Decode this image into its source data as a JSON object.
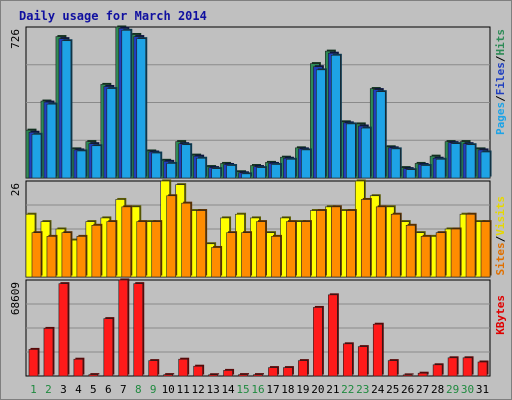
{
  "chart_data": {
    "type": "bar",
    "title": "Daily usage for March 2014",
    "categories": [
      "1",
      "2",
      "3",
      "4",
      "5",
      "6",
      "7",
      "8",
      "9",
      "10",
      "11",
      "12",
      "13",
      "14",
      "15",
      "16",
      "17",
      "18",
      "19",
      "20",
      "21",
      "22",
      "23",
      "24",
      "25",
      "26",
      "27",
      "28",
      "29",
      "30",
      "31"
    ],
    "weekend_days": [
      "1",
      "2",
      "8",
      "9",
      "15",
      "16",
      "22",
      "23",
      "29",
      "30"
    ],
    "panels": [
      {
        "name": "pages-files-hits",
        "max_label": "726",
        "ylim": [
          0,
          726
        ],
        "grid": true,
        "legend": [
          {
            "text": "Pages",
            "color": "#1ea3e6"
          },
          {
            "text": "/",
            "color": "#000000"
          },
          {
            "text": "Files",
            "color": "#1f3fbf"
          },
          {
            "text": "/",
            "color": "#000000"
          },
          {
            "text": "Hits",
            "color": "#2e8b57"
          }
        ],
        "series": [
          {
            "name": "Hits",
            "color": "#2e8b57",
            "values": [
              230,
              370,
              680,
              140,
              175,
              450,
              730,
              690,
              130,
              85,
              175,
              110,
              55,
              70,
              30,
              60,
              75,
              100,
              145,
              550,
              610,
              270,
              260,
              430,
              150,
              50,
              70,
              105,
              175,
              175,
              140
            ]
          },
          {
            "name": "Files",
            "color": "#1f3fbf",
            "values": [
              220,
              365,
              670,
              135,
              165,
              440,
              720,
              680,
              125,
              80,
              165,
              105,
              50,
              65,
              25,
              55,
              70,
              95,
              140,
              535,
              600,
              265,
              250,
              425,
              145,
              45,
              65,
              95,
              170,
              165,
              135
            ]
          },
          {
            "name": "Pages",
            "color": "#1ea3e6",
            "values": [
              210,
              355,
              660,
              130,
              155,
              430,
              710,
              670,
              120,
              70,
              160,
              95,
              45,
              60,
              20,
              50,
              65,
              90,
              135,
              520,
              590,
              260,
              240,
              415,
              140,
              40,
              60,
              90,
              165,
              160,
              125
            ]
          }
        ]
      },
      {
        "name": "visits-sites",
        "max_label": "26",
        "ylim": [
          0,
          26
        ],
        "grid": true,
        "legend": [
          {
            "text": "Sites",
            "color": "#e07000"
          },
          {
            "text": "/",
            "color": "#000000"
          },
          {
            "text": "Visits",
            "color": "#e6d800"
          }
        ],
        "series": [
          {
            "name": "Visits",
            "color": "#ffff00",
            "values": [
              17,
              15,
              13,
              10,
              15,
              16,
              21,
              19,
              15,
              26,
              25,
              18,
              9,
              16,
              17,
              16,
              12,
              16,
              15,
              18,
              19,
              18,
              26,
              22,
              19,
              15,
              12,
              11,
              13,
              17,
              15
            ]
          },
          {
            "name": "Sites",
            "color": "#ff8c00",
            "values": [
              12,
              11,
              12,
              11,
              14,
              15,
              19,
              15,
              15,
              22,
              20,
              18,
              8,
              12,
              12,
              15,
              11,
              15,
              15,
              18,
              19,
              18,
              21,
              19,
              17,
              14,
              11,
              12,
              13,
              17,
              15
            ]
          }
        ]
      },
      {
        "name": "kbytes",
        "max_label": "68609",
        "ylim": [
          0,
          68609
        ],
        "grid": true,
        "legend": [
          {
            "text": "KBytes",
            "color": "#e00000"
          }
        ],
        "series": [
          {
            "name": "KBytes",
            "color": "#ff1a1a",
            "values": [
              19000,
              34000,
              66000,
              12000,
              1000,
              41000,
              69000,
              66000,
              11000,
              1000,
              12000,
              7000,
              900,
              4000,
              1000,
              1000,
              6000,
              6000,
              11000,
              49000,
              58000,
              23000,
              21000,
              37000,
              11000,
              800,
              2000,
              8000,
              13000,
              13000,
              10000
            ]
          }
        ]
      }
    ]
  }
}
